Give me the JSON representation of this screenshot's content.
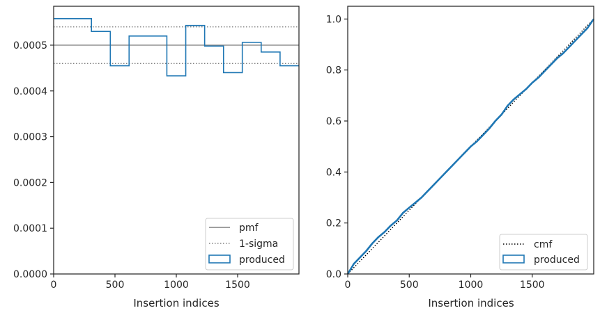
{
  "chart_data": [
    {
      "type": "step",
      "xlabel": "Insertion indices",
      "ylabel": "",
      "xlim": [
        0,
        2000
      ],
      "ylim": [
        0,
        0.000585
      ],
      "xticks": [
        0,
        500,
        1000,
        1500
      ],
      "xtick_labels": [
        "0",
        "500",
        "1000",
        "1500"
      ],
      "yticks": [
        0,
        0.0001,
        0.0002,
        0.0003,
        0.0004,
        0.0005
      ],
      "ytick_labels": [
        "0.0000",
        "0.0001",
        "0.0002",
        "0.0003",
        "0.0004",
        "0.0005"
      ],
      "pmf": 0.0005,
      "sigma_low": 0.00046,
      "sigma_high": 0.00054,
      "bin_edges": [
        0,
        308,
        462,
        615,
        923,
        1077,
        1231,
        1385,
        1538,
        1692,
        1846,
        2000
      ],
      "produced": [
        0.000558,
        0.00053,
        0.000455,
        0.00052,
        0.000433,
        0.000543,
        0.000498,
        0.00044,
        0.000506,
        0.000485,
        0.000455
      ],
      "legend": {
        "position": "lower right",
        "entries": [
          {
            "label": "pmf",
            "style": "solid",
            "color": "#808080"
          },
          {
            "label": "1-sigma",
            "style": "dotted",
            "color": "#808080"
          },
          {
            "label": "produced",
            "style": "patch",
            "color": "#1f77b4"
          }
        ]
      }
    },
    {
      "type": "line",
      "xlabel": "Insertion indices",
      "ylabel": "",
      "xlim": [
        0,
        2000
      ],
      "ylim": [
        0,
        1.05
      ],
      "xticks": [
        0,
        500,
        1000,
        1500
      ],
      "xtick_labels": [
        "0",
        "500",
        "1000",
        "1500"
      ],
      "yticks": [
        0,
        0.2,
        0.4,
        0.6,
        0.8,
        1.0
      ],
      "ytick_labels": [
        "0.0",
        "0.2",
        "0.4",
        "0.6",
        "0.8",
        "1.0"
      ],
      "cmf": {
        "x": [
          0,
          2000
        ],
        "y": [
          0,
          1.0
        ]
      },
      "produced": {
        "x": [
          0,
          50,
          100,
          150,
          200,
          250,
          300,
          350,
          400,
          450,
          500,
          550,
          600,
          650,
          700,
          750,
          800,
          850,
          900,
          950,
          1000,
          1050,
          1100,
          1150,
          1200,
          1250,
          1300,
          1350,
          1400,
          1450,
          1500,
          1550,
          1600,
          1650,
          1700,
          1750,
          1800,
          1850,
          1900,
          1950,
          2000
        ],
        "y": [
          0,
          0.04,
          0.065,
          0.09,
          0.12,
          0.145,
          0.165,
          0.19,
          0.21,
          0.24,
          0.26,
          0.28,
          0.3,
          0.325,
          0.35,
          0.375,
          0.4,
          0.425,
          0.45,
          0.475,
          0.5,
          0.52,
          0.545,
          0.57,
          0.6,
          0.625,
          0.66,
          0.685,
          0.705,
          0.725,
          0.75,
          0.77,
          0.795,
          0.82,
          0.845,
          0.865,
          0.89,
          0.915,
          0.94,
          0.965,
          1.0
        ]
      },
      "legend": {
        "position": "lower right",
        "entries": [
          {
            "label": "cmf",
            "style": "dotted",
            "color": "#000000"
          },
          {
            "label": "produced",
            "style": "patch",
            "color": "#1f77b4"
          }
        ]
      }
    }
  ]
}
